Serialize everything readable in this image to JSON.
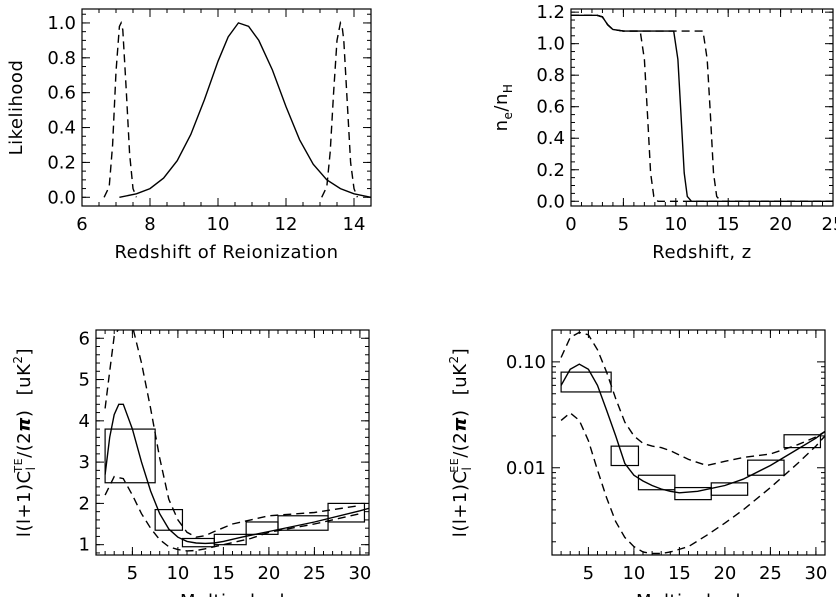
{
  "chart_data": [
    {
      "id": "likelihood",
      "type": "line",
      "xlabel": "Redshift of Reionization",
      "ylabel": "Likelihood",
      "xlim": [
        6,
        14.5
      ],
      "ylim": [
        -0.05,
        1.08
      ],
      "xticks": [
        6,
        8,
        10,
        12,
        14
      ],
      "yticks": [
        0.0,
        0.2,
        0.4,
        0.6,
        0.8,
        1.0
      ],
      "ytick_labels": [
        "0.0",
        "0.2",
        "0.4",
        "0.6",
        "0.8",
        "1.0"
      ],
      "series": [
        {
          "style": "solid",
          "x": [
            7.1,
            7.6,
            8.0,
            8.4,
            8.8,
            9.2,
            9.6,
            10.0,
            10.3,
            10.6,
            10.9,
            11.2,
            11.6,
            12.0,
            12.4,
            12.8,
            13.2,
            13.6,
            14.0,
            14.5
          ],
          "y": [
            0.0,
            0.02,
            0.05,
            0.11,
            0.21,
            0.36,
            0.56,
            0.78,
            0.92,
            1.0,
            0.98,
            0.9,
            0.73,
            0.52,
            0.33,
            0.19,
            0.1,
            0.05,
            0.02,
            0.0
          ]
        },
        {
          "style": "dashed",
          "x": [
            6.65,
            6.8,
            6.9,
            7.0,
            7.1,
            7.15,
            7.2,
            7.3,
            7.4,
            7.5,
            7.6
          ],
          "y": [
            0.0,
            0.06,
            0.3,
            0.72,
            0.98,
            1.0,
            0.96,
            0.62,
            0.25,
            0.05,
            0.0
          ]
        },
        {
          "style": "dashed",
          "x": [
            13.05,
            13.2,
            13.3,
            13.4,
            13.5,
            13.6,
            13.65,
            13.7,
            13.8,
            13.9,
            14.0,
            14.1
          ],
          "y": [
            0.0,
            0.06,
            0.26,
            0.6,
            0.9,
            1.0,
            0.98,
            0.9,
            0.55,
            0.2,
            0.05,
            0.0
          ]
        }
      ]
    },
    {
      "id": "ionization",
      "type": "line",
      "xlabel": "Redshift, z",
      "ylabel": "n_e/n_H",
      "xlim": [
        0,
        25
      ],
      "ylim": [
        -0.03,
        1.22
      ],
      "xticks": [
        0,
        5,
        10,
        15,
        20,
        25
      ],
      "yticks": [
        0.0,
        0.2,
        0.4,
        0.6,
        0.8,
        1.0,
        1.2
      ],
      "ytick_labels": [
        "0.0",
        "0.2",
        "0.4",
        "0.6",
        "0.8",
        "1.0",
        "1.2"
      ],
      "series": [
        {
          "style": "solid",
          "x": [
            0,
            2.5,
            3.0,
            3.5,
            4.0,
            5,
            8,
            9.8,
            10.2,
            10.5,
            10.8,
            11.1,
            11.5,
            12,
            25
          ],
          "y": [
            1.18,
            1.18,
            1.17,
            1.12,
            1.09,
            1.08,
            1.08,
            1.08,
            0.9,
            0.55,
            0.18,
            0.03,
            0.0,
            0.0,
            0.0
          ]
        },
        {
          "style": "dashed",
          "x": [
            0,
            2.5,
            3.0,
            3.5,
            4.0,
            5,
            6.6,
            7.0,
            7.3,
            7.6,
            7.9,
            8.3,
            9,
            25
          ],
          "y": [
            1.18,
            1.18,
            1.17,
            1.12,
            1.09,
            1.08,
            1.08,
            0.9,
            0.55,
            0.18,
            0.03,
            0.0,
            0.0,
            0.0
          ]
        },
        {
          "style": "dashed",
          "x": [
            0,
            2.5,
            3.0,
            3.5,
            4.0,
            5,
            12.6,
            13.0,
            13.3,
            13.6,
            13.9,
            14.3,
            15,
            25
          ],
          "y": [
            1.18,
            1.18,
            1.17,
            1.12,
            1.09,
            1.08,
            1.08,
            0.9,
            0.55,
            0.18,
            0.03,
            0.0,
            0.0,
            0.0
          ]
        }
      ]
    },
    {
      "id": "te_spectrum",
      "type": "line",
      "xlabel": "Multipole, l",
      "ylabel_main": "l(l+1)C",
      "ylabel_sub": "l",
      "ylabel_sup": "TE",
      "ylabel_tail": "/(2",
      "ylabel_pi": "π",
      "ylabel_close": ")",
      "ylabel_units": "[uK",
      "ylabel_units_sup": "2",
      "ylabel_units_close": "]",
      "xlim": [
        1,
        31
      ],
      "ylim": [
        0.75,
        6.2
      ],
      "xticks": [
        5,
        10,
        15,
        20,
        25,
        30
      ],
      "yticks": [
        1,
        2,
        3,
        4,
        5,
        6
      ],
      "ytick_labels": [
        "1",
        "2",
        "3",
        "4",
        "5",
        "6"
      ],
      "series": [
        {
          "style": "solid",
          "x": [
            2,
            2.5,
            3,
            3.5,
            4,
            5,
            6,
            7,
            8,
            9,
            10,
            11,
            12,
            13,
            14,
            15,
            17,
            20,
            25,
            30,
            31
          ],
          "y": [
            2.7,
            3.6,
            4.15,
            4.4,
            4.4,
            3.8,
            3.0,
            2.3,
            1.75,
            1.38,
            1.18,
            1.08,
            1.04,
            1.03,
            1.04,
            1.08,
            1.18,
            1.32,
            1.55,
            1.82,
            1.88
          ]
        },
        {
          "style": "dashed",
          "x": [
            2,
            2.5,
            3,
            4,
            5,
            6,
            7,
            8,
            9,
            10,
            11,
            12,
            13,
            14,
            16,
            18,
            20,
            25,
            30
          ],
          "y": [
            4.3,
            5.2,
            6.05,
            6.4,
            6.3,
            5.4,
            4.3,
            3.1,
            2.1,
            1.6,
            1.3,
            1.18,
            1.22,
            1.32,
            1.5,
            1.6,
            1.7,
            1.78,
            1.95
          ]
        },
        {
          "style": "dashed",
          "x": [
            2,
            3,
            4,
            5,
            6,
            7,
            8,
            9,
            10,
            11,
            12,
            13,
            14,
            16,
            18,
            20,
            25,
            30
          ],
          "y": [
            2.2,
            2.65,
            2.6,
            2.2,
            1.75,
            1.4,
            1.12,
            0.95,
            0.88,
            0.85,
            0.86,
            0.9,
            0.95,
            1.05,
            1.15,
            1.3,
            1.5,
            1.75
          ]
        }
      ],
      "bins": [
        {
          "x0": 2,
          "x1": 7.5,
          "y0": 2.5,
          "y1": 3.8
        },
        {
          "x0": 7.5,
          "x1": 10.5,
          "y0": 1.35,
          "y1": 1.85
        },
        {
          "x0": 10.5,
          "x1": 14,
          "y0": 0.95,
          "y1": 1.15
        },
        {
          "x0": 14,
          "x1": 17.5,
          "y0": 1.0,
          "y1": 1.25
        },
        {
          "x0": 17.5,
          "x1": 21,
          "y0": 1.25,
          "y1": 1.55
        },
        {
          "x0": 21,
          "x1": 26.5,
          "y0": 1.35,
          "y1": 1.7
        },
        {
          "x0": 26.5,
          "x1": 30.5,
          "y0": 1.55,
          "y1": 2.0
        }
      ]
    },
    {
      "id": "ee_spectrum",
      "type": "line",
      "xlabel": "Multipole, l",
      "ylabel_main": "l(l+1)C",
      "ylabel_sub": "l",
      "ylabel_sup": "EE",
      "ylabel_tail": "/(2",
      "ylabel_pi": "π",
      "ylabel_close": ")",
      "ylabel_units": "[uK",
      "ylabel_units_sup": "2",
      "ylabel_units_close": "]",
      "xlim": [
        1,
        31
      ],
      "ylim": [
        0.0015,
        0.2
      ],
      "yscale": "log",
      "xticks": [
        5,
        10,
        15,
        20,
        25,
        30
      ],
      "yticks": [
        0.01,
        0.1
      ],
      "ytick_labels": [
        "0.01",
        "0.10"
      ],
      "series": [
        {
          "style": "solid",
          "x": [
            2,
            3,
            4,
            5,
            6,
            7,
            8,
            9,
            10,
            11,
            12,
            13,
            14,
            15,
            17,
            20,
            22,
            25,
            28,
            30,
            31
          ],
          "y": [
            0.06,
            0.085,
            0.095,
            0.085,
            0.06,
            0.035,
            0.02,
            0.011,
            0.0085,
            0.0075,
            0.0068,
            0.0063,
            0.006,
            0.0058,
            0.006,
            0.0068,
            0.0078,
            0.0105,
            0.015,
            0.019,
            0.022
          ]
        },
        {
          "style": "dashed",
          "x": [
            2,
            3,
            4,
            5,
            6,
            7,
            8,
            9,
            10,
            11,
            12,
            13,
            14,
            16,
            18,
            20,
            22,
            25,
            28,
            30,
            31
          ],
          "y": [
            0.11,
            0.17,
            0.19,
            0.18,
            0.13,
            0.08,
            0.045,
            0.027,
            0.02,
            0.017,
            0.016,
            0.0155,
            0.0145,
            0.012,
            0.0105,
            0.0115,
            0.0125,
            0.0135,
            0.0165,
            0.0195,
            0.022
          ]
        },
        {
          "style": "dashed",
          "x": [
            2,
            3,
            4,
            5,
            6,
            7,
            8,
            9,
            10,
            11,
            12,
            13,
            14,
            16,
            18,
            20,
            22,
            25,
            28,
            30,
            31
          ],
          "y": [
            0.028,
            0.033,
            0.028,
            0.018,
            0.0095,
            0.0052,
            0.0031,
            0.0022,
            0.0018,
            0.0016,
            0.00155,
            0.00155,
            0.0016,
            0.0018,
            0.0023,
            0.003,
            0.004,
            0.0065,
            0.011,
            0.016,
            0.02
          ]
        }
      ],
      "bins": [
        {
          "x0": 2,
          "x1": 7.5,
          "y0": 0.052,
          "y1": 0.08
        },
        {
          "x0": 7.5,
          "x1": 10.5,
          "y0": 0.0105,
          "y1": 0.016
        },
        {
          "x0": 10.5,
          "x1": 14.5,
          "y0": 0.0062,
          "y1": 0.0085
        },
        {
          "x0": 14.5,
          "x1": 18.5,
          "y0": 0.005,
          "y1": 0.0065
        },
        {
          "x0": 18.5,
          "x1": 22.5,
          "y0": 0.0055,
          "y1": 0.0072
        },
        {
          "x0": 22.5,
          "x1": 26.5,
          "y0": 0.0085,
          "y1": 0.0118
        },
        {
          "x0": 26.5,
          "x1": 30.5,
          "y0": 0.0155,
          "y1": 0.0205
        }
      ]
    }
  ]
}
